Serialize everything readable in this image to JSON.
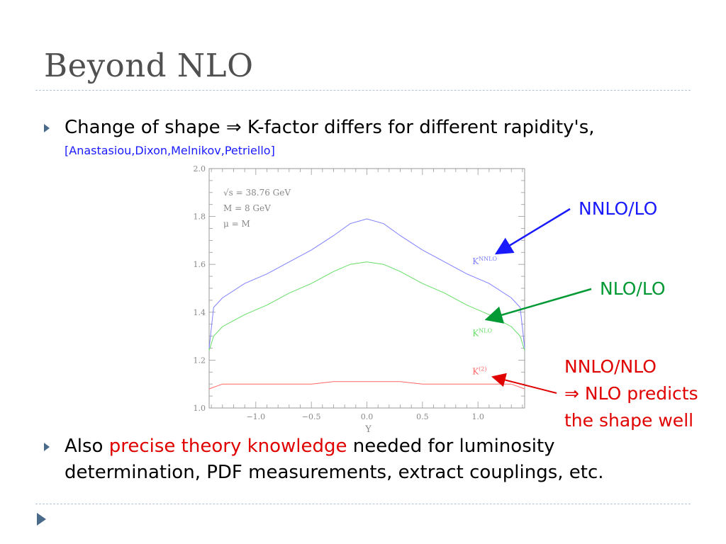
{
  "slide": {
    "title": "Beyond NLO",
    "bullet1": {
      "text": "Change of shape ⇒ K-factor differs for different rapidity's,",
      "citation": "[Anastasiou,Dixon,Melnikov,Petriello]"
    },
    "bullet2": {
      "line1_pre": "Also ",
      "line1_highlight": "precise theory knowledge",
      "line1_post": " needed for luminosity",
      "line2": "determination, PDF measurements, extract couplings, etc."
    },
    "callouts": {
      "nnlo_lo": "NNLO/LO",
      "nlo_lo": "NLO/LO",
      "nnlo_nlo_1": "NNLO/NLO",
      "nnlo_nlo_2": "⇒ NLO predicts",
      "nnlo_nlo_3": "the shape well"
    },
    "colors": {
      "blue": "#1a1aff",
      "green": "#009933",
      "red": "#e00000",
      "title": "#505050"
    }
  },
  "chart_data": {
    "type": "line",
    "xlabel": "Y",
    "ylabel": "",
    "xlim": [
      -1.42,
      1.42
    ],
    "ylim": [
      1.0,
      2.0
    ],
    "xticks": [
      "-1.0",
      "-0.5",
      "0.0",
      "0.5",
      "1.0"
    ],
    "yticks": [
      "1.0",
      "1.2",
      "1.4",
      "1.6",
      "1.8",
      "2.0"
    ],
    "annotations": [
      "√s = 38.76 GeV",
      "M = 8 GeV",
      "μ = M"
    ],
    "series": [
      {
        "name": "K^NNLO",
        "color": "#8080ff",
        "x": [
          -1.42,
          -1.38,
          -1.3,
          -1.1,
          -0.9,
          -0.7,
          -0.5,
          -0.3,
          -0.15,
          0.0,
          0.15,
          0.3,
          0.5,
          0.7,
          0.9,
          1.1,
          1.3,
          1.38,
          1.42
        ],
        "y": [
          1.25,
          1.42,
          1.46,
          1.52,
          1.56,
          1.61,
          1.66,
          1.72,
          1.77,
          1.79,
          1.77,
          1.72,
          1.66,
          1.61,
          1.56,
          1.52,
          1.46,
          1.42,
          1.25
        ]
      },
      {
        "name": "K^NLO",
        "color": "#66dd66",
        "x": [
          -1.42,
          -1.38,
          -1.3,
          -1.1,
          -0.9,
          -0.7,
          -0.5,
          -0.3,
          -0.15,
          0.0,
          0.15,
          0.3,
          0.5,
          0.7,
          0.9,
          1.1,
          1.3,
          1.38,
          1.42
        ],
        "y": [
          1.24,
          1.3,
          1.34,
          1.39,
          1.43,
          1.48,
          1.52,
          1.57,
          1.6,
          1.61,
          1.6,
          1.57,
          1.52,
          1.48,
          1.43,
          1.39,
          1.34,
          1.3,
          1.24
        ]
      },
      {
        "name": "K^(2)",
        "color": "#ff6666",
        "x": [
          -1.42,
          -1.3,
          -1.1,
          -0.9,
          -0.7,
          -0.5,
          -0.3,
          -0.15,
          0.0,
          0.15,
          0.3,
          0.5,
          0.7,
          0.9,
          1.1,
          1.3,
          1.42
        ],
        "y": [
          1.08,
          1.1,
          1.1,
          1.1,
          1.1,
          1.1,
          1.11,
          1.11,
          1.11,
          1.11,
          1.11,
          1.1,
          1.1,
          1.1,
          1.1,
          1.1,
          1.08
        ]
      }
    ],
    "series_labels": [
      {
        "main": "K",
        "sup": "NNLO",
        "color": "#8080ff",
        "x": 1.0,
        "y": 1.6
      },
      {
        "main": "K",
        "sup": "NLO",
        "color": "#66dd66",
        "x": 1.0,
        "y": 1.3
      },
      {
        "main": "K",
        "sup": "(2)",
        "color": "#ff6666",
        "x": 1.0,
        "y": 1.14
      }
    ]
  }
}
